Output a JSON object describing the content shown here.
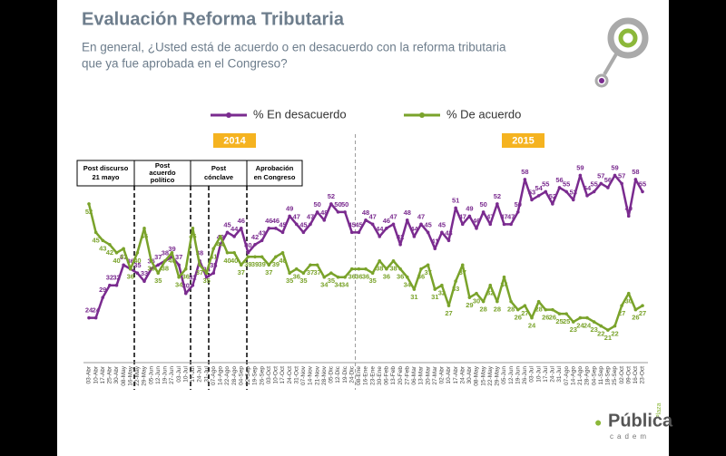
{
  "chart_data": {
    "type": "line",
    "title": "Evaluación Reforma Tributaria",
    "subtitle": [
      "En general, ¿Usted está de acuerdo o en desacuerdo con la reforma tributaria",
      "que ya fue aprobada en el Congreso?"
    ],
    "years": [
      "2014",
      "2015"
    ],
    "annotations": [
      [
        "Post discurso",
        "21 mayo"
      ],
      [
        "Post",
        "acuerdo",
        "político"
      ],
      [
        "Post",
        "cónclave"
      ],
      [
        "Aprobación",
        "en Congreso"
      ]
    ],
    "logo": {
      "top": "Plaza",
      "main": "Pública",
      "sub": "cadem"
    },
    "categories": [
      "03-Abr",
      "10-Abr",
      "17-Abr",
      "25-Abr",
      "30-Abr",
      "08-May",
      "16-May",
      "22-May",
      "29-May",
      "05-Jun",
      "12-Jun",
      "19-Jun",
      "27-Jun",
      "03-Jul",
      "10-Jul",
      "17-Jul",
      "24-Jul",
      "31-Jul",
      "07-Ago",
      "14-Ago",
      "22-Ago",
      "28-Ago",
      "04-Sep",
      "12-Sep",
      "19-Sep",
      "26-Sep",
      "03-Oct",
      "10-Oct",
      "17-Oct",
      "24-Oct",
      "31-Oct",
      "07-Nov",
      "14-Nov",
      "21-Nov",
      "28-Nov",
      "05-Dic",
      "12-Dic",
      "19-Dic",
      "24-Dic",
      "08-Ene",
      "16-Ene",
      "23-Ene",
      "30-Ene",
      "06-Feb",
      "13-Feb",
      "20-Feb",
      "27-Feb",
      "06-Mar",
      "13-Mar",
      "20-Mar",
      "27-Mar",
      "02-Abr",
      "10-Abr",
      "17-Abr",
      "24-Abr",
      "30-Abr",
      "08-May",
      "15-May",
      "22-May",
      "29-May",
      "05-Jun",
      "12-Jun",
      "19-Jun",
      "26-Jun",
      "03-Jul",
      "10-Jul",
      "17-Jul",
      "24-Jul",
      "31-Jul",
      "07-Ago",
      "14-Ago",
      "21-Ago",
      "28-Ago",
      "04-Sep",
      "11-Sep",
      "18-Sep",
      "25-Sep",
      "02-Oct",
      "09-Oct",
      "16-Oct",
      "23-Oct"
    ],
    "series": [
      {
        "name": "% En desacuerdo",
        "color": "#7a2b8f",
        "values": [
          24,
          24,
          29,
          32,
          32,
          37,
          36,
          35,
          33,
          36,
          37,
          38,
          39,
          37,
          30,
          32,
          38,
          34,
          35,
          42,
          45,
          44,
          46,
          40,
          42,
          43,
          46,
          46,
          45,
          49,
          47,
          45,
          47,
          50,
          48,
          52,
          50,
          50,
          45,
          45,
          48,
          47,
          44,
          46,
          47,
          42,
          48,
          44,
          47,
          45,
          41,
          45,
          43,
          51,
          47,
          49,
          46,
          50,
          47,
          52,
          47,
          47,
          50,
          58,
          53,
          54,
          55,
          52,
          56,
          55,
          53,
          59,
          54,
          55,
          57,
          56,
          59,
          57,
          49,
          58,
          55
        ]
      },
      {
        "name": "% De acuerdo",
        "color": "#7aa32b",
        "values": [
          52,
          45,
          43,
          42,
          40,
          41,
          36,
          40,
          46,
          38,
          35,
          38,
          40,
          34,
          36,
          46,
          37,
          35,
          41,
          44,
          40,
          40,
          37,
          39,
          39,
          39,
          37,
          39,
          40,
          35,
          36,
          35,
          37,
          37,
          34,
          35,
          34,
          34,
          36,
          36,
          36,
          35,
          38,
          36,
          38,
          36,
          34,
          31,
          36,
          37,
          31,
          32,
          27,
          33,
          37,
          29,
          30,
          28,
          32,
          28,
          34,
          28,
          26,
          27,
          24,
          28,
          26,
          26,
          25,
          25,
          23,
          24,
          24,
          23,
          22,
          21,
          22,
          27,
          30,
          26,
          27
        ]
      }
    ],
    "ylim": [
      13,
      62
    ]
  }
}
